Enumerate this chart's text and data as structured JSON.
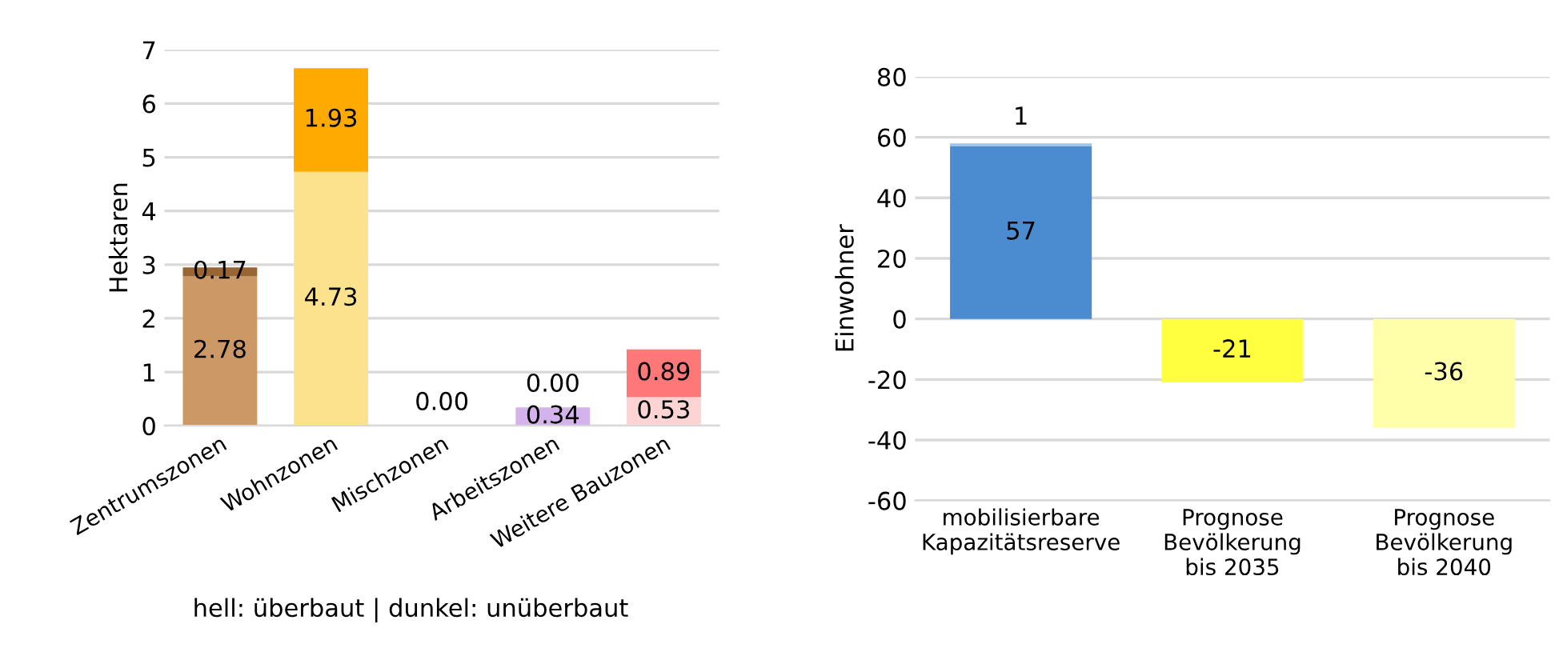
{
  "chart_data": [
    {
      "type": "bar",
      "stacked": true,
      "ylabel": "Hektaren",
      "categories": [
        "Zentrumszonen",
        "Wohnzonen",
        "Mischzonen",
        "Arbeitszonen",
        "Weitere Bauzonen"
      ],
      "series": [
        {
          "colors": [
            "#cc9966",
            "#fde28e",
            "#b0b0b0",
            "#d4b3ec",
            "#fdd3d3"
          ],
          "values": [
            2.78,
            4.73,
            0.0,
            0.34,
            0.53
          ],
          "value_labels": [
            "2.78",
            "4.73",
            "0.00",
            "0.34",
            "0.53"
          ]
        },
        {
          "colors": [
            "#996633",
            "#ffaa00",
            "#808080",
            "#a070d0",
            "#ff7878"
          ],
          "values": [
            0.17,
            1.93,
            0.0,
            0.0,
            0.89
          ],
          "value_labels": [
            "0.17",
            "1.93",
            null,
            "0.00",
            "0.89"
          ]
        }
      ],
      "ylim": [
        0,
        7
      ],
      "yticks": [
        0,
        1,
        2,
        3,
        4,
        5,
        6,
        7
      ],
      "grid": "y",
      "legend": false,
      "annotations": [
        "hell: überbaut | dunkel: unüberbaut"
      ]
    },
    {
      "type": "bar",
      "stacked": true,
      "ylabel": "Einwohner",
      "categories": [
        "mobilisierbare\nKapazitätsreserve",
        "Prognose\nBevölkerung\nbis 2035",
        "Prognose\nBevölkerung\nbis 2040"
      ],
      "series": [
        {
          "colors": [
            "#4a8ccf",
            "#ffff40",
            "#ffffaa"
          ],
          "values": [
            57,
            -21,
            -36
          ],
          "value_labels": [
            "57",
            "-21",
            "-36"
          ]
        },
        {
          "colors": [
            "#9dc3e6",
            "#ffff40",
            "#ffffaa"
          ],
          "values": [
            1,
            null,
            null
          ],
          "value_labels": [
            "1",
            null,
            null
          ]
        }
      ],
      "ylim": [
        -60,
        80
      ],
      "yticks": [
        -60,
        -40,
        -20,
        0,
        20,
        40,
        60,
        80
      ],
      "grid": "y",
      "legend": false
    }
  ]
}
